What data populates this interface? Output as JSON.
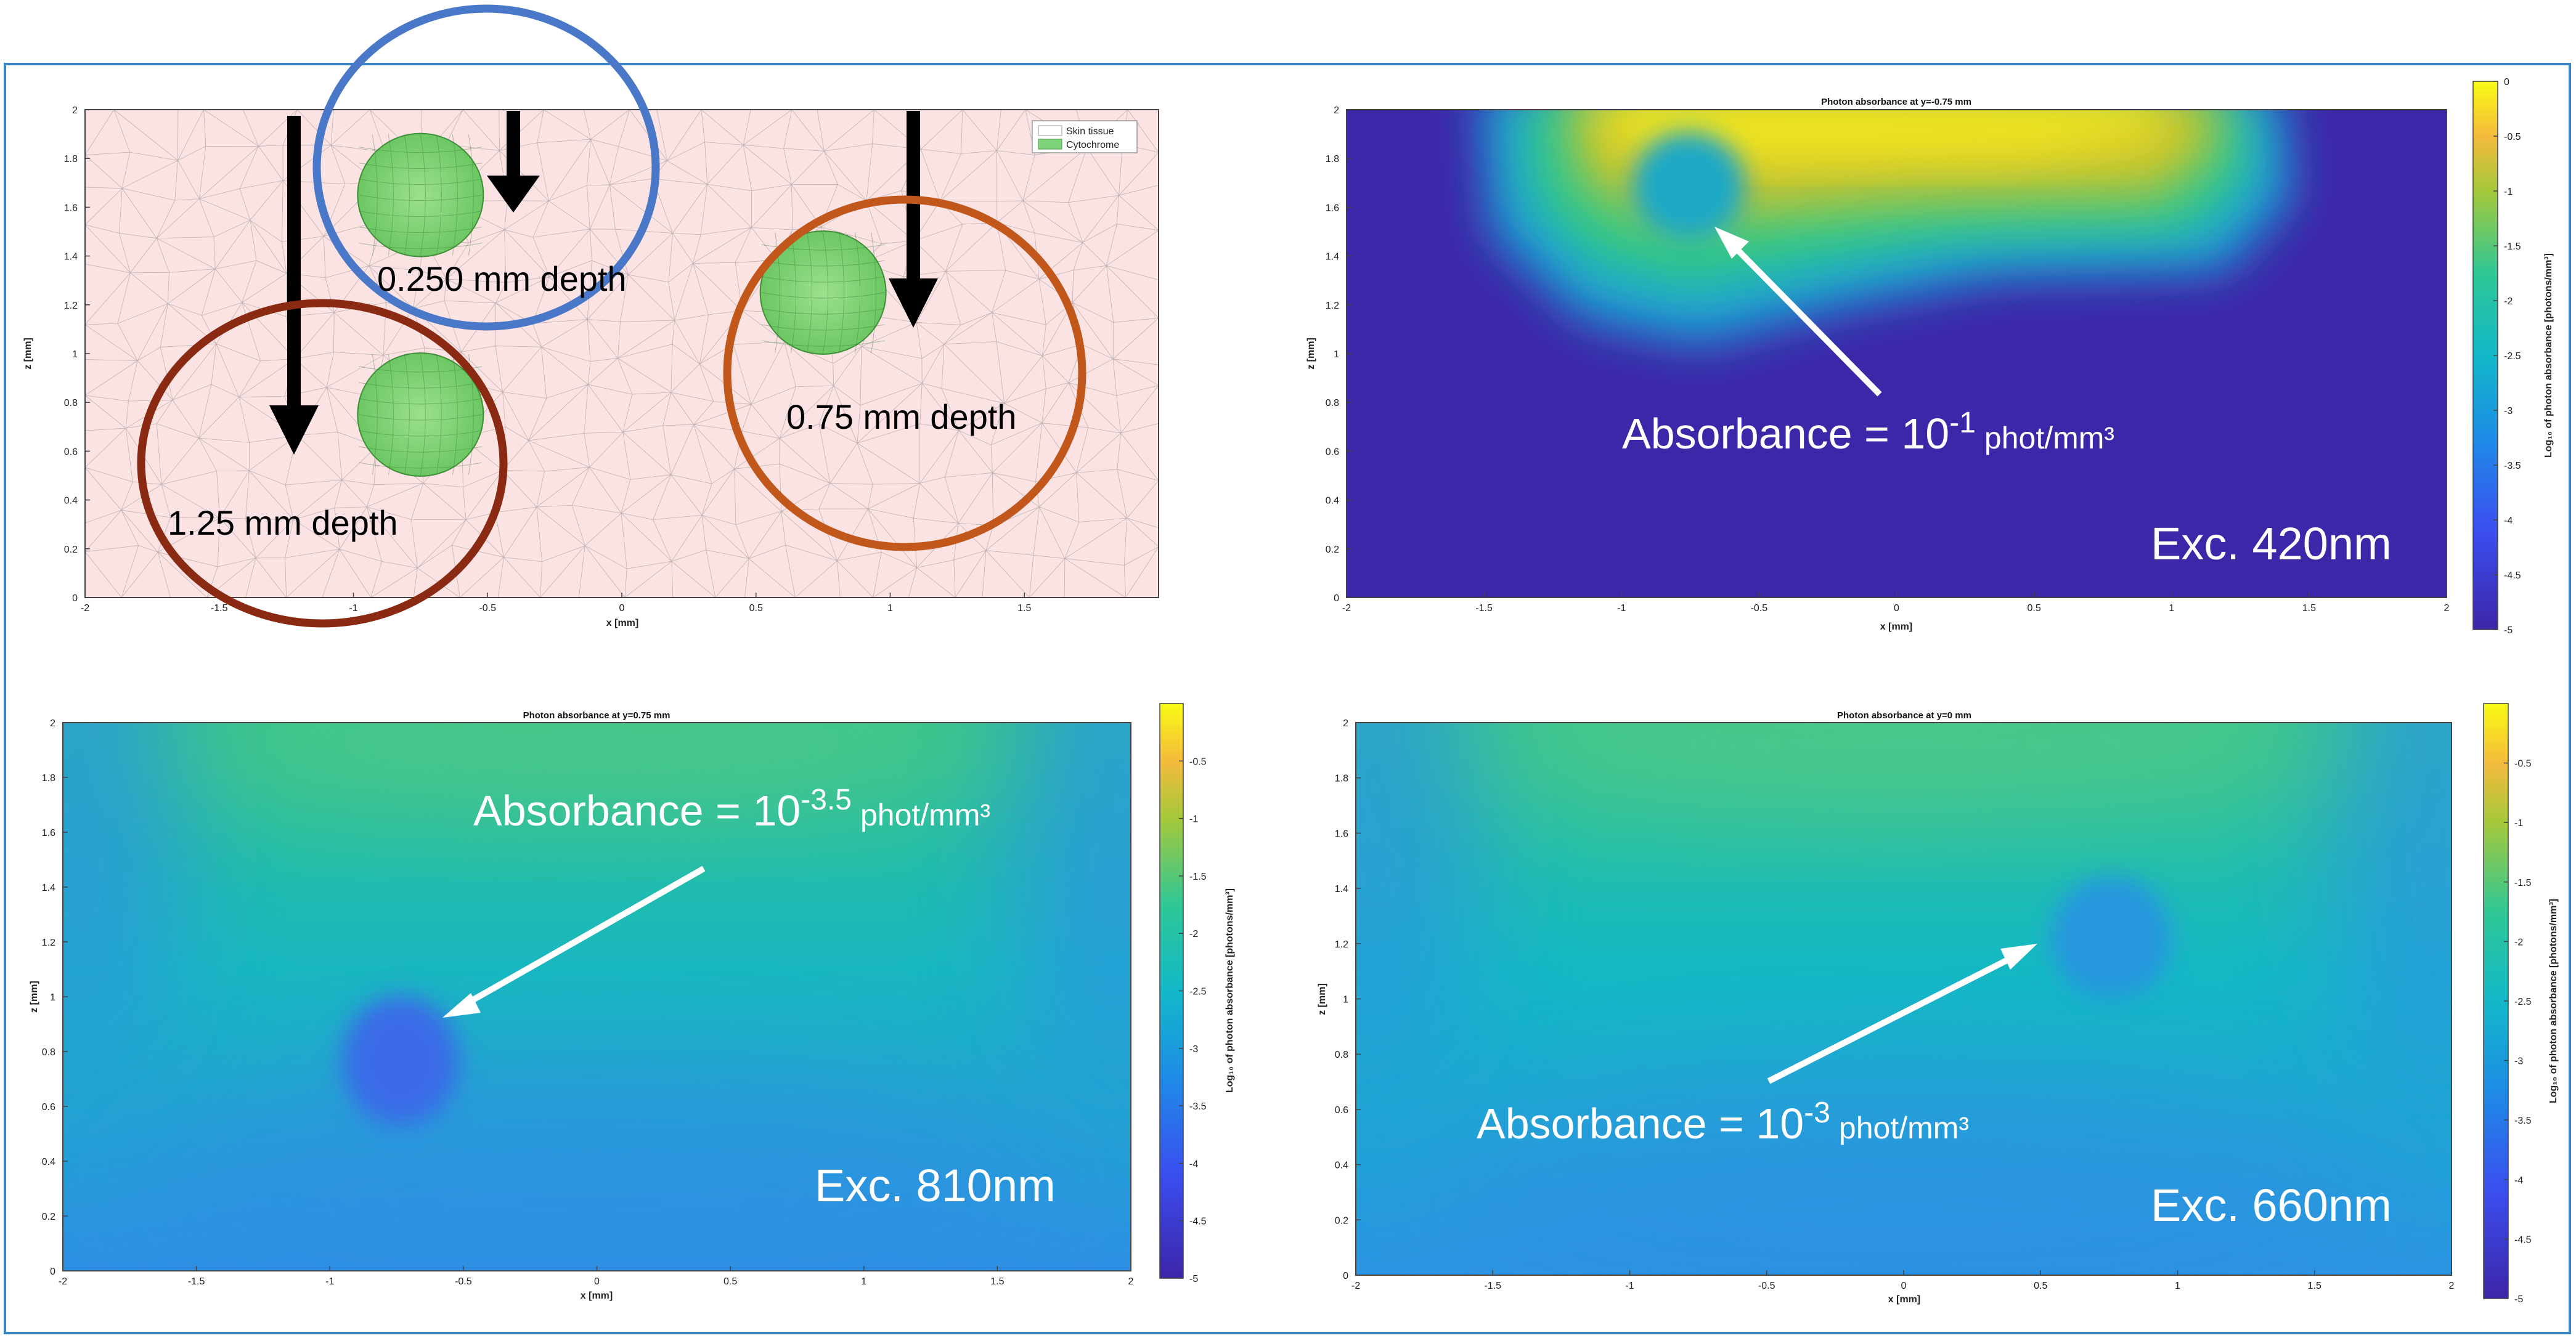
{
  "panels": {
    "geometry": {
      "xlabel": "x [mm]",
      "ylabel": "z [mm]",
      "legend": [
        "Skin tissue",
        "Cytochrome"
      ],
      "depth_labels": [
        "0.250 mm depth",
        "0.75 mm depth",
        "1.25 mm depth"
      ],
      "xticks": [
        "-2",
        "-1.5",
        "-1",
        "-0.5",
        "0",
        "0.5",
        "1",
        "1.5"
      ],
      "yticks": [
        "0",
        "0.2",
        "0.4",
        "0.6",
        "0.8",
        "1",
        "1.2",
        "1.4",
        "1.6",
        "1.8",
        "2"
      ],
      "colors": {
        "tissue": "#fbe3e3",
        "cytochrome": "#7fd37a",
        "ring_blue": "#4a78c8",
        "ring_orange": "#c2571b",
        "ring_brown": "#8b2a12"
      }
    },
    "exc420": {
      "title": "Photon absorbance at y=-0.75 mm",
      "xlabel": "x [mm]",
      "ylabel": "z [mm]",
      "annotation_prefix": "Absorbance = 10",
      "annotation_exp": "-1",
      "annotation_unit": "phot/mm³",
      "excitation": "Exc. 420nm",
      "colorbar_label": "Log₁₀ of photon absorbance [photons/mm³]",
      "colorbar_ticks": [
        "0",
        "-0.5",
        "-1",
        "-1.5",
        "-2",
        "-2.5",
        "-3",
        "-3.5",
        "-4",
        "-4.5",
        "-5"
      ]
    },
    "exc810": {
      "title": "Photon absorbance at y=0.75 mm",
      "xlabel": "x [mm]",
      "ylabel": "z [mm]",
      "annotation_prefix": "Absorbance = 10",
      "annotation_exp": "-3.5",
      "annotation_unit": "phot/mm³",
      "excitation": "Exc. 810nm",
      "colorbar_label": "Log₁₀ of photon absorbance [photons/mm³]",
      "colorbar_ticks": [
        "-0.5",
        "-1",
        "-1.5",
        "-2",
        "-2.5",
        "-3",
        "-3.5",
        "-4",
        "-4.5",
        "-5"
      ]
    },
    "exc660": {
      "title": "Photon absorbance at y=0 mm",
      "xlabel": "x [mm]",
      "ylabel": "z [mm]",
      "annotation_prefix": "Absorbance = 10",
      "annotation_exp": "-3",
      "annotation_unit": "phot/mm³",
      "excitation": "Exc. 660nm",
      "colorbar_label": "Log₁₀ of photon absorbance [photons/mm³]",
      "colorbar_ticks": [
        "-0.5",
        "-1",
        "-1.5",
        "-2",
        "-2.5",
        "-3",
        "-3.5",
        "-4",
        "-4.5",
        "-5"
      ]
    }
  },
  "heatmap_xticks": [
    "-2",
    "-1.5",
    "-1",
    "-0.5",
    "0",
    "0.5",
    "1",
    "1.5",
    "2"
  ],
  "heatmap_yticks": [
    "0",
    "0.2",
    "0.4",
    "0.6",
    "0.8",
    "1",
    "1.2",
    "1.4",
    "1.6",
    "1.8",
    "2"
  ],
  "chart_data": [
    {
      "type": "heatmap",
      "title": "Photon absorbance at y=-0.75 mm",
      "xlabel": "x [mm]",
      "ylabel": "z [mm]",
      "xlim": [
        -2,
        2
      ],
      "ylim": [
        0,
        2
      ],
      "clim": [
        -5,
        0
      ],
      "annotation": {
        "x": -0.75,
        "z": 1.65,
        "value_log10": -1
      },
      "excitation_nm": 420
    },
    {
      "type": "heatmap",
      "title": "Photon absorbance at y=0.75 mm",
      "xlabel": "x [mm]",
      "ylabel": "z [mm]",
      "xlim": [
        -2,
        2
      ],
      "ylim": [
        0,
        2
      ],
      "clim": [
        -5,
        0
      ],
      "annotation": {
        "x": -0.75,
        "z": 0.75,
        "value_log10": -3.5
      },
      "excitation_nm": 810
    },
    {
      "type": "heatmap",
      "title": "Photon absorbance at y=0 mm",
      "xlabel": "x [mm]",
      "ylabel": "z [mm]",
      "xlim": [
        -2,
        2
      ],
      "ylim": [
        0,
        2
      ],
      "clim": [
        -5,
        0
      ],
      "annotation": {
        "x": 0.75,
        "z": 1.25,
        "value_log10": -3
      },
      "excitation_nm": 660
    }
  ]
}
